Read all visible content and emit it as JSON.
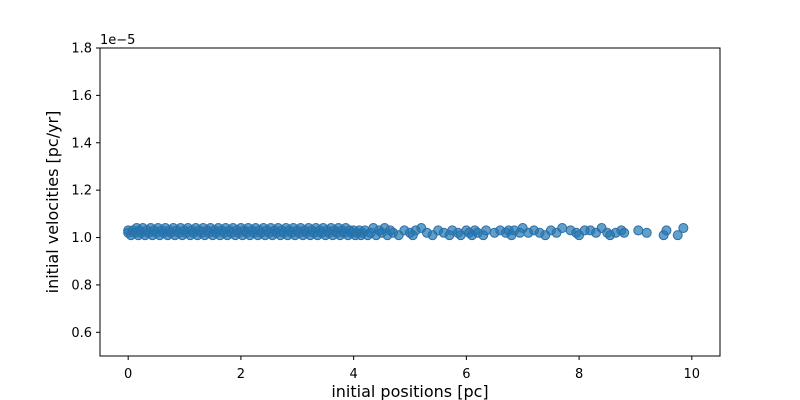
{
  "chart_data": {
    "type": "scatter",
    "title": "",
    "xlabel": "initial positions [pc]",
    "ylabel": "initial velocities [pc/yr]",
    "y_offset_label": "1e−5",
    "y_scale_factor": 1e-05,
    "xlim": [
      -0.5,
      10.5
    ],
    "ylim": [
      0.5,
      1.8
    ],
    "x_ticks": [
      0,
      2,
      4,
      6,
      8,
      10
    ],
    "y_ticks": [
      0.6,
      0.8,
      1.0,
      1.2,
      1.4,
      1.6,
      1.8
    ],
    "x_tick_labels": [
      "0",
      "2",
      "4",
      "6",
      "8",
      "10"
    ],
    "y_tick_labels": [
      "0.6",
      "0.8",
      "1.0",
      "1.2",
      "1.4",
      "1.6",
      "1.8"
    ],
    "grid": false,
    "legend": false,
    "marker_color": "#1f77b4",
    "marker_alpha": 0.7,
    "series": [
      {
        "points": [
          [
            0.0,
            1.02
          ],
          [
            0.0,
            1.03
          ],
          [
            0.05,
            1.01
          ],
          [
            0.08,
            1.03
          ],
          [
            0.12,
            1.02
          ],
          [
            0.15,
            1.04
          ],
          [
            0.18,
            1.01
          ],
          [
            0.2,
            1.03
          ],
          [
            0.23,
            1.02
          ],
          [
            0.26,
            1.04
          ],
          [
            0.3,
            1.01
          ],
          [
            0.33,
            1.03
          ],
          [
            0.36,
            1.02
          ],
          [
            0.4,
            1.04
          ],
          [
            0.43,
            1.01
          ],
          [
            0.46,
            1.03
          ],
          [
            0.5,
            1.02
          ],
          [
            0.53,
            1.04
          ],
          [
            0.56,
            1.01
          ],
          [
            0.6,
            1.03
          ],
          [
            0.63,
            1.02
          ],
          [
            0.66,
            1.04
          ],
          [
            0.7,
            1.01
          ],
          [
            0.73,
            1.03
          ],
          [
            0.76,
            1.02
          ],
          [
            0.8,
            1.04
          ],
          [
            0.83,
            1.01
          ],
          [
            0.86,
            1.03
          ],
          [
            0.9,
            1.02
          ],
          [
            0.93,
            1.04
          ],
          [
            0.96,
            1.01
          ],
          [
            1.0,
            1.03
          ],
          [
            1.03,
            1.02
          ],
          [
            1.06,
            1.04
          ],
          [
            1.1,
            1.01
          ],
          [
            1.13,
            1.03
          ],
          [
            1.16,
            1.02
          ],
          [
            1.2,
            1.04
          ],
          [
            1.23,
            1.01
          ],
          [
            1.26,
            1.03
          ],
          [
            1.3,
            1.02
          ],
          [
            1.33,
            1.04
          ],
          [
            1.36,
            1.01
          ],
          [
            1.4,
            1.03
          ],
          [
            1.43,
            1.02
          ],
          [
            1.46,
            1.04
          ],
          [
            1.5,
            1.01
          ],
          [
            1.53,
            1.03
          ],
          [
            1.56,
            1.02
          ],
          [
            1.6,
            1.04
          ],
          [
            1.63,
            1.01
          ],
          [
            1.66,
            1.03
          ],
          [
            1.7,
            1.02
          ],
          [
            1.73,
            1.04
          ],
          [
            1.76,
            1.01
          ],
          [
            1.8,
            1.03
          ],
          [
            1.83,
            1.02
          ],
          [
            1.86,
            1.04
          ],
          [
            1.9,
            1.01
          ],
          [
            1.93,
            1.03
          ],
          [
            1.96,
            1.02
          ],
          [
            2.0,
            1.04
          ],
          [
            2.03,
            1.01
          ],
          [
            2.06,
            1.03
          ],
          [
            2.1,
            1.02
          ],
          [
            2.13,
            1.04
          ],
          [
            2.16,
            1.01
          ],
          [
            2.2,
            1.03
          ],
          [
            2.23,
            1.02
          ],
          [
            2.26,
            1.04
          ],
          [
            2.3,
            1.01
          ],
          [
            2.33,
            1.03
          ],
          [
            2.36,
            1.02
          ],
          [
            2.4,
            1.04
          ],
          [
            2.43,
            1.01
          ],
          [
            2.46,
            1.03
          ],
          [
            2.5,
            1.02
          ],
          [
            2.53,
            1.04
          ],
          [
            2.56,
            1.01
          ],
          [
            2.6,
            1.03
          ],
          [
            2.63,
            1.02
          ],
          [
            2.66,
            1.04
          ],
          [
            2.7,
            1.01
          ],
          [
            2.73,
            1.03
          ],
          [
            2.76,
            1.02
          ],
          [
            2.8,
            1.04
          ],
          [
            2.83,
            1.01
          ],
          [
            2.86,
            1.03
          ],
          [
            2.9,
            1.02
          ],
          [
            2.93,
            1.04
          ],
          [
            2.96,
            1.01
          ],
          [
            3.0,
            1.03
          ],
          [
            3.03,
            1.02
          ],
          [
            3.06,
            1.04
          ],
          [
            3.1,
            1.01
          ],
          [
            3.13,
            1.03
          ],
          [
            3.16,
            1.02
          ],
          [
            3.2,
            1.04
          ],
          [
            3.23,
            1.01
          ],
          [
            3.26,
            1.03
          ],
          [
            3.3,
            1.02
          ],
          [
            3.33,
            1.04
          ],
          [
            3.36,
            1.01
          ],
          [
            3.4,
            1.03
          ],
          [
            3.43,
            1.02
          ],
          [
            3.46,
            1.04
          ],
          [
            3.5,
            1.01
          ],
          [
            3.53,
            1.03
          ],
          [
            3.56,
            1.02
          ],
          [
            3.6,
            1.04
          ],
          [
            3.63,
            1.01
          ],
          [
            3.66,
            1.03
          ],
          [
            3.7,
            1.02
          ],
          [
            3.73,
            1.04
          ],
          [
            3.76,
            1.01
          ],
          [
            3.8,
            1.03
          ],
          [
            3.83,
            1.02
          ],
          [
            3.86,
            1.04
          ],
          [
            3.9,
            1.01
          ],
          [
            3.93,
            1.03
          ],
          [
            3.96,
            1.02
          ],
          [
            4.0,
            1.03
          ],
          [
            4.03,
            1.01
          ],
          [
            4.06,
            1.02
          ],
          [
            4.1,
            1.03
          ],
          [
            4.13,
            1.01
          ],
          [
            4.16,
            1.02
          ],
          [
            4.2,
            1.03
          ],
          [
            4.25,
            1.01
          ],
          [
            4.3,
            1.02
          ],
          [
            4.35,
            1.04
          ],
          [
            4.4,
            1.01
          ],
          [
            4.45,
            1.03
          ],
          [
            4.5,
            1.02
          ],
          [
            4.55,
            1.04
          ],
          [
            4.6,
            1.01
          ],
          [
            4.65,
            1.03
          ],
          [
            4.7,
            1.02
          ],
          [
            4.8,
            1.01
          ],
          [
            4.9,
            1.03
          ],
          [
            5.0,
            1.02
          ],
          [
            5.05,
            1.01
          ],
          [
            5.1,
            1.03
          ],
          [
            5.2,
            1.04
          ],
          [
            5.3,
            1.02
          ],
          [
            5.4,
            1.01
          ],
          [
            5.5,
            1.03
          ],
          [
            5.6,
            1.02
          ],
          [
            5.7,
            1.01
          ],
          [
            5.75,
            1.03
          ],
          [
            5.85,
            1.02
          ],
          [
            5.9,
            1.01
          ],
          [
            6.0,
            1.03
          ],
          [
            6.05,
            1.02
          ],
          [
            6.1,
            1.01
          ],
          [
            6.15,
            1.03
          ],
          [
            6.2,
            1.02
          ],
          [
            6.3,
            1.01
          ],
          [
            6.35,
            1.03
          ],
          [
            6.5,
            1.02
          ],
          [
            6.6,
            1.03
          ],
          [
            6.7,
            1.02
          ],
          [
            6.75,
            1.03
          ],
          [
            6.8,
            1.01
          ],
          [
            6.85,
            1.03
          ],
          [
            6.95,
            1.02
          ],
          [
            7.0,
            1.04
          ],
          [
            7.1,
            1.02
          ],
          [
            7.2,
            1.03
          ],
          [
            7.3,
            1.02
          ],
          [
            7.4,
            1.01
          ],
          [
            7.5,
            1.03
          ],
          [
            7.6,
            1.02
          ],
          [
            7.7,
            1.04
          ],
          [
            7.85,
            1.03
          ],
          [
            7.95,
            1.02
          ],
          [
            8.0,
            1.01
          ],
          [
            8.1,
            1.03
          ],
          [
            8.2,
            1.03
          ],
          [
            8.3,
            1.02
          ],
          [
            8.4,
            1.04
          ],
          [
            8.5,
            1.02
          ],
          [
            8.55,
            1.01
          ],
          [
            8.65,
            1.02
          ],
          [
            8.75,
            1.03
          ],
          [
            8.8,
            1.02
          ],
          [
            9.05,
            1.03
          ],
          [
            9.2,
            1.02
          ],
          [
            9.5,
            1.01
          ],
          [
            9.55,
            1.03
          ],
          [
            9.75,
            1.01
          ],
          [
            9.85,
            1.04
          ]
        ]
      }
    ]
  }
}
